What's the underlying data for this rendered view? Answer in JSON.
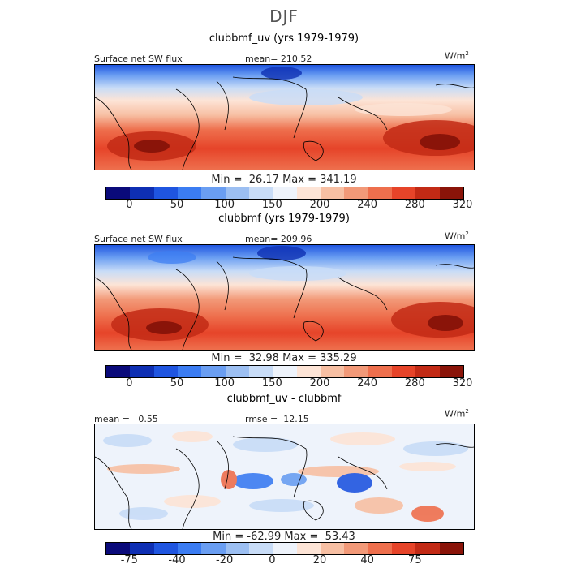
{
  "title": "DJF",
  "units": {
    "base": "W/m",
    "exp": "2"
  },
  "chart_data": [
    {
      "type": "heatmap",
      "panel_title": "clubbmf_uv (yrs 1979-1979)",
      "left_label": "Surface net SW flux",
      "stat_label": "mean= 210.52",
      "min_max": "Min =  26.17 Max = 341.19",
      "colorbar_ticks": [
        "0",
        "50",
        "100",
        "150",
        "200",
        "240",
        "280",
        "320"
      ],
      "colorbar_colors": [
        "#0a0a7a",
        "#0e2fb3",
        "#1f55e0",
        "#3b7cf2",
        "#6a9ef2",
        "#9cbff2",
        "#c8dcf7",
        "#eef3fb",
        "#fde4d6",
        "#f7bfa3",
        "#f29978",
        "#ee6f4d",
        "#e64429",
        "#c22a15",
        "#8a1409"
      ]
    },
    {
      "type": "heatmap",
      "panel_title": "clubbmf (yrs 1979-1979)",
      "left_label": "Surface net SW flux",
      "stat_label": "mean= 209.96",
      "min_max": "Min =  32.98 Max = 335.29",
      "colorbar_ticks": [
        "0",
        "50",
        "100",
        "150",
        "200",
        "240",
        "280",
        "320"
      ],
      "colorbar_colors": [
        "#0a0a7a",
        "#0e2fb3",
        "#1f55e0",
        "#3b7cf2",
        "#6a9ef2",
        "#9cbff2",
        "#c8dcf7",
        "#eef3fb",
        "#fde4d6",
        "#f7bfa3",
        "#f29978",
        "#ee6f4d",
        "#e64429",
        "#c22a15",
        "#8a1409"
      ]
    },
    {
      "type": "heatmap",
      "panel_title": "clubbmf_uv - clubbmf",
      "left_label": "mean =   0.55",
      "stat_label": "rmse =  12.15",
      "min_max": "Min = -62.99 Max =  53.43",
      "colorbar_ticks": [
        "-75",
        "-40",
        "-20",
        "0",
        "20",
        "40",
        "75"
      ],
      "colorbar_colors": [
        "#0a0a7a",
        "#0e2fb3",
        "#1f55e0",
        "#3b7cf2",
        "#6a9ef2",
        "#9cbff2",
        "#c8dcf7",
        "#eef3fb",
        "#fde4d6",
        "#f7bfa3",
        "#f29978",
        "#ee6f4d",
        "#e64429",
        "#c22a15",
        "#8a1409"
      ]
    }
  ]
}
